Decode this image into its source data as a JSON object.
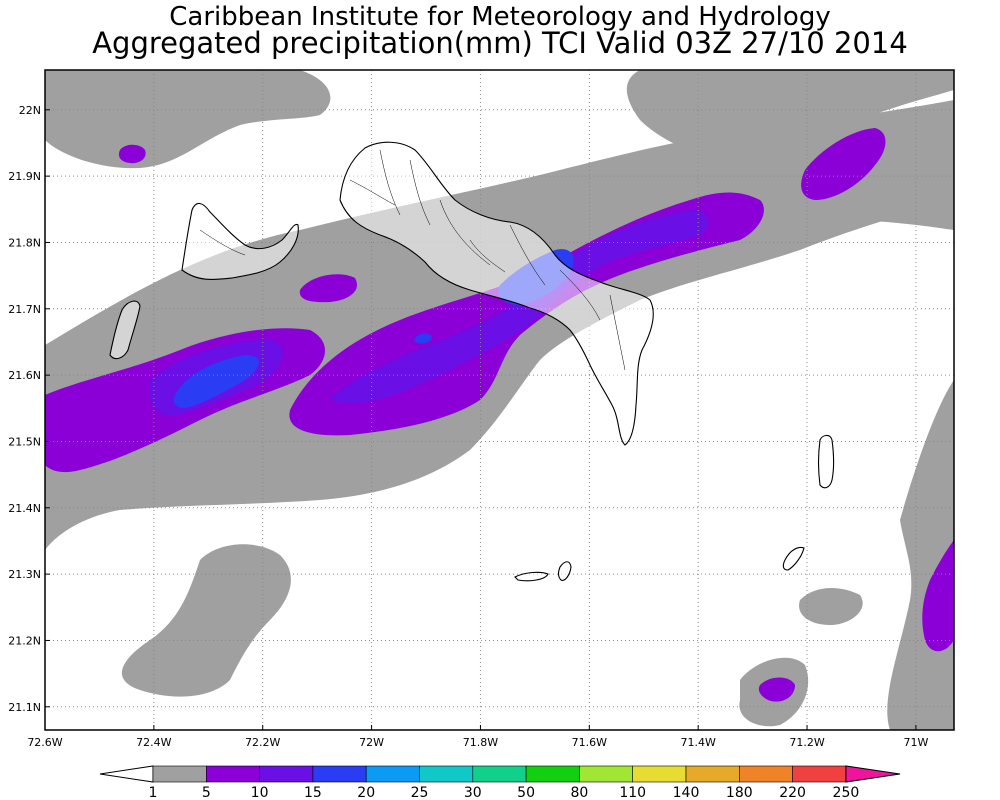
{
  "header": {
    "title": "Caribbean Institute for Meteorology and Hydrology",
    "subtitle": "Aggregated precipitation(mm) TCI Valid 03Z 27/10 2014"
  },
  "map": {
    "lon_range": [
      -72.6,
      -70.93
    ],
    "lat_range": [
      21.065,
      22.06
    ],
    "lon_ticks": [
      {
        "value": -72.6,
        "label": "72.6W"
      },
      {
        "value": -72.4,
        "label": "72.4W"
      },
      {
        "value": -72.2,
        "label": "72.2W"
      },
      {
        "value": -72.0,
        "label": "72W"
      },
      {
        "value": -71.8,
        "label": "71.8W"
      },
      {
        "value": -71.6,
        "label": "71.6W"
      },
      {
        "value": -71.4,
        "label": "71.4W"
      },
      {
        "value": -71.2,
        "label": "71.2W"
      },
      {
        "value": -71.0,
        "label": "71W"
      }
    ],
    "lat_ticks": [
      {
        "value": 22.0,
        "label": "22N"
      },
      {
        "value": 21.9,
        "label": "21.9N"
      },
      {
        "value": 21.8,
        "label": "21.8N"
      },
      {
        "value": 21.7,
        "label": "21.7N"
      },
      {
        "value": 21.6,
        "label": "21.6N"
      },
      {
        "value": 21.5,
        "label": "21.5N"
      },
      {
        "value": 21.4,
        "label": "21.4N"
      },
      {
        "value": 21.3,
        "label": "21.3N"
      },
      {
        "value": 21.2,
        "label": "21.2N"
      },
      {
        "value": 21.1,
        "label": "21.1N"
      }
    ],
    "grid": "dotted"
  },
  "legend": {
    "thresholds": [
      "1",
      "5",
      "10",
      "15",
      "20",
      "25",
      "30",
      "50",
      "80",
      "110",
      "140",
      "180",
      "220",
      "250"
    ],
    "colors": [
      "#ffffff",
      "#a0a0a0",
      "#8a00d6",
      "#6a10e6",
      "#2a3cf4",
      "#0a9cf4",
      "#10c8c8",
      "#10d08a",
      "#10d010",
      "#a0e632",
      "#e6dc32",
      "#e6aa28",
      "#f08228",
      "#f04040",
      "#f0149c"
    ]
  },
  "colors": {
    "gray": "#a0a0a0",
    "light_purple": "#8a00d6",
    "purple": "#6a10e6",
    "blue": "#2a3cf4"
  }
}
